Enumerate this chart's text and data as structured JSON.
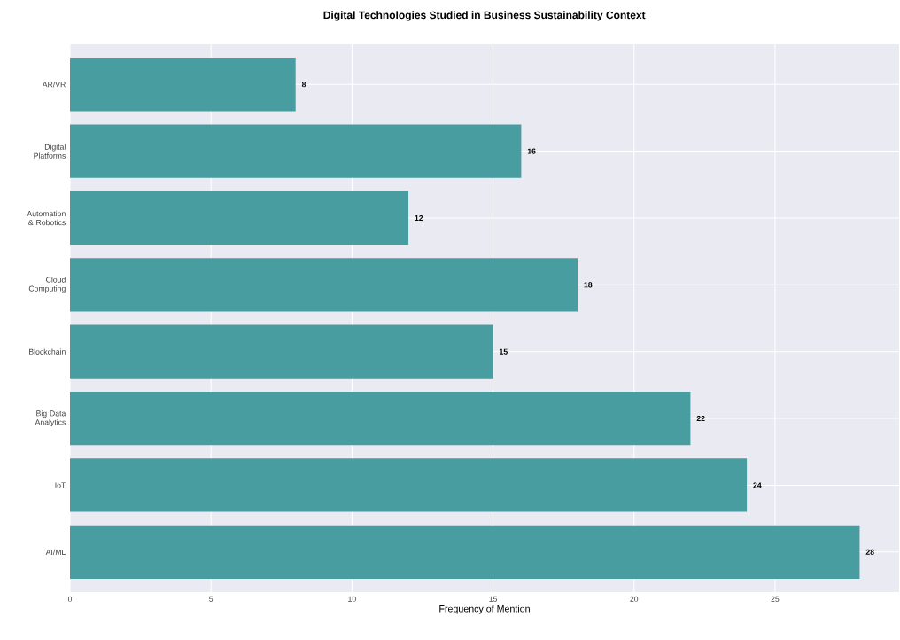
{
  "chart_data": {
    "type": "bar",
    "orientation": "horizontal",
    "title": "Digital Technologies Studied in Business Sustainability Context",
    "xlabel": "Frequency of Mention",
    "categories": [
      "AR/VR",
      "Digital Platforms",
      "Automation & Robotics",
      "Cloud Computing",
      "Blockchain",
      "Big Data Analytics",
      "IoT",
      "AI/ML"
    ],
    "values": [
      8,
      16,
      12,
      18,
      15,
      22,
      24,
      28
    ],
    "color": "#479d9f",
    "xlim": [
      0,
      29.4
    ],
    "xticks": [
      0,
      5,
      10,
      15,
      20,
      25
    ],
    "grid": true,
    "data_labels": true
  }
}
